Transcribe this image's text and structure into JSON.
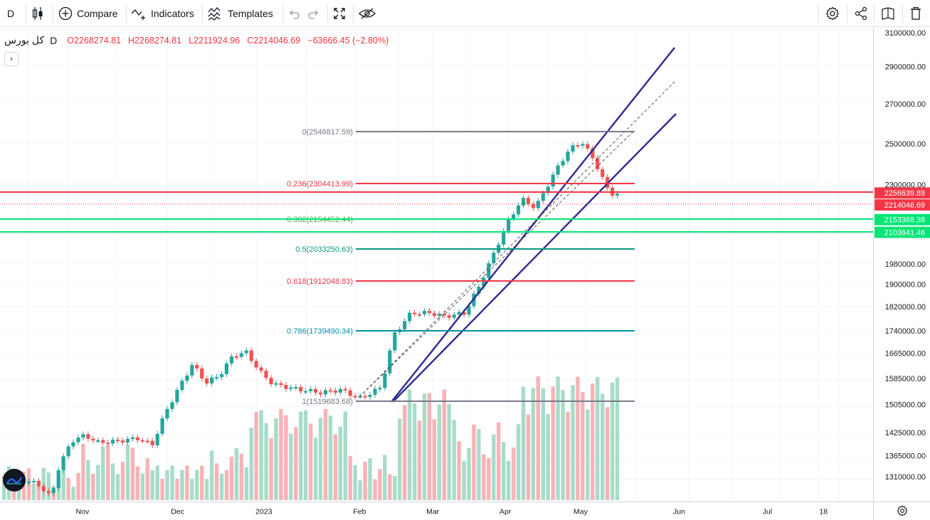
{
  "toolbar": {
    "symbol_short": "D",
    "compare_label": "Compare",
    "indicators_label": "Indicators",
    "templates_label": "Templates"
  },
  "legend": {
    "symbol_name": "کل بورس",
    "interval": "D",
    "open": "O2268274.81",
    "high": "H2268274.81",
    "low": "L2211924.96",
    "close": "C2214046.69",
    "change": "−63666.45 (−2.80%)",
    "collapse_glyph": "›"
  },
  "price_axis": {
    "ticks": [
      "3100000.00",
      "2900000.00",
      "2700000.00",
      "2500000.00",
      "2300000.00",
      "1980000.00",
      "1900000.00",
      "1820000.00",
      "1740000.00",
      "1665000.00",
      "1585000.00",
      "1505000.00",
      "1425000.00",
      "1365000.00",
      "1310000.00"
    ],
    "labels": [
      {
        "text": "2256639.89",
        "color": "#f23645"
      },
      {
        "text": "2214046.69",
        "color": "#f23645"
      },
      {
        "text": "2153368.38",
        "color": "#00e676"
      },
      {
        "text": "2103641.46",
        "color": "#00e676"
      }
    ]
  },
  "time_axis": {
    "labels": [
      "Nov",
      "Dec",
      "2023",
      "Feb",
      "Mar",
      "Apr",
      "May",
      "Jun",
      "Jul",
      "18"
    ]
  },
  "fib_levels": [
    {
      "label": "0(2546817.59)",
      "color": "#787b86"
    },
    {
      "label": "0.236(2304413.99)",
      "color": "#f23645"
    },
    {
      "label": "0.382(2154452.44)",
      "color": "#4caf50"
    },
    {
      "label": "0.5(2033250.63)",
      "color": "#089981"
    },
    {
      "label": "0.618(1912048.83)",
      "color": "#f23645"
    },
    {
      "label": "0.786(1739490.34)",
      "color": "#0097a7"
    },
    {
      "label": "1(1519683.68)",
      "color": "#787b86"
    }
  ],
  "colors": {
    "up": "#26a69a",
    "down": "#ef5350",
    "vol_up": "#a8dcc9",
    "vol_down": "#f7b3b7",
    "channel": "#2e2a93"
  }
}
